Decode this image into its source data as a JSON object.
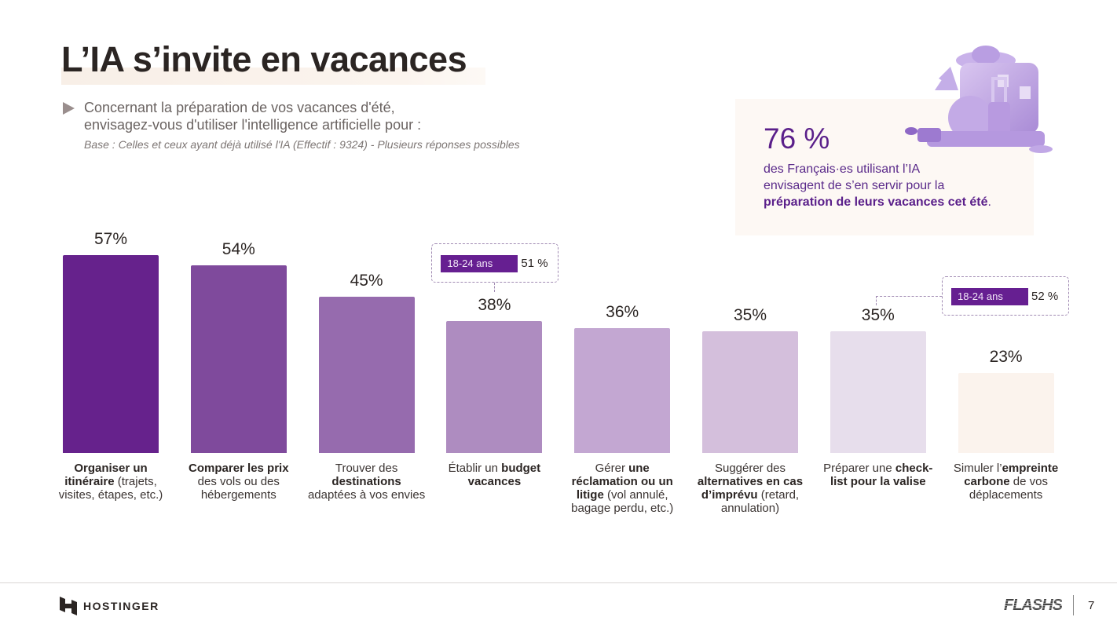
{
  "header": {
    "title": "L’IA s’invite en vacances",
    "question_line1": "Concernant la préparation de vos vacances d'été,",
    "question_line2": "envisagez-vous d'utiliser l'intelligence artificielle pour :",
    "base": "Base : Celles et ceux ayant déjà utilisé l'IA (Effectif : 9324) - Plusieurs réponses possibles"
  },
  "highlight": {
    "percent": "76 %",
    "text_line1": "des Français·es utilisant l’IA",
    "text_line2": "envisagent de s’en servir pour la",
    "text_bold": "préparation de leurs vacances cet été",
    "text_end": ".",
    "illustration": "suitcase-travel-illustration"
  },
  "chart_data": {
    "type": "bar",
    "title": "L’IA s’invite en vacances",
    "xlabel": "",
    "ylabel": "",
    "ylim": [
      0,
      60
    ],
    "grid": false,
    "categories": [
      "Organiser un itinéraire (trajets, visites, étapes, etc.)",
      "Comparer les prix des vols ou des hébergements",
      "Trouver des destinations adaptées à vos envies",
      "Établir un budget vacances",
      "Gérer une réclamation ou un litige (vol annulé, bagage perdu, etc.)",
      "Suggérer des alternatives en cas d’imprévu (retard, annulation)",
      "Préparer une check-list pour la valise",
      "Simuler l’empreinte carbone de vos déplacements"
    ],
    "values": [
      57,
      54,
      45,
      38,
      36,
      35,
      35,
      23
    ],
    "value_labels": [
      "57%",
      "54%",
      "45%",
      "38%",
      "36%",
      "35%",
      "35%",
      "23%"
    ],
    "colors": [
      "#66228c",
      "#7f4a9c",
      "#966bae",
      "#ae8cc0",
      "#c3a7d2",
      "#d4bfdc",
      "#e7deec",
      "#fbf3ed"
    ],
    "label_parts": [
      [
        {
          "t": "Organiser un itinéraire",
          "b": true
        },
        {
          "t": " (trajets, visites, étapes, etc.)",
          "b": false
        }
      ],
      [
        {
          "t": "Comparer les prix",
          "b": true
        },
        {
          "t": " des vols ou des hébergements",
          "b": false
        }
      ],
      [
        {
          "t": "Trouver des ",
          "b": false
        },
        {
          "t": "destinations",
          "b": true
        },
        {
          "t": " adaptées à vos envies",
          "b": false
        }
      ],
      [
        {
          "t": "Établir un ",
          "b": false
        },
        {
          "t": "budget vacances",
          "b": true
        }
      ],
      [
        {
          "t": "Gérer ",
          "b": false
        },
        {
          "t": "une réclamation ou un litige",
          "b": true
        },
        {
          "t": " (vol annulé, bagage perdu, etc.)",
          "b": false
        }
      ],
      [
        {
          "t": "Suggérer des ",
          "b": false
        },
        {
          "t": "alternatives en cas d’imprévu",
          "b": true
        },
        {
          "t": " (retard, annulation)",
          "b": false
        }
      ],
      [
        {
          "t": "Préparer une ",
          "b": false
        },
        {
          "t": "check-list pour la valise",
          "b": true
        }
      ],
      [
        {
          "t": "Simuler l’",
          "b": false
        },
        {
          "t": "empreinte carbone",
          "b": true
        },
        {
          "t": " de vos déplacements",
          "b": false
        }
      ]
    ],
    "annotations": [
      {
        "category_index": 3,
        "segment": "18-24 ans",
        "value": "51 %"
      },
      {
        "category_index": 6,
        "segment": "18-24 ans",
        "value": "52 %"
      }
    ]
  },
  "footer": {
    "brand": "HOSTINGER",
    "series": "FLASHS",
    "page": "7"
  }
}
